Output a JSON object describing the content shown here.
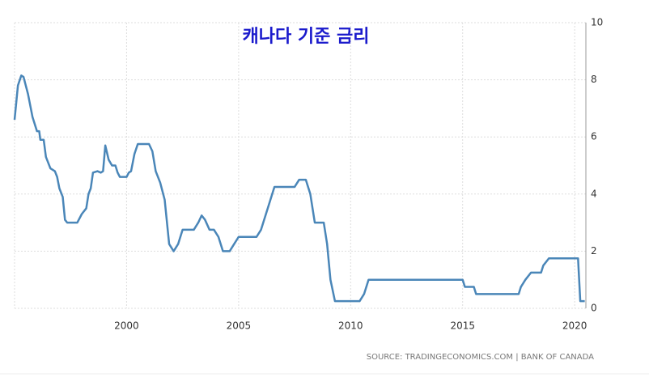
{
  "chart_data": {
    "type": "line",
    "title": "캐나다 기준 금리",
    "source": "SOURCE: TRADINGECONOMICS.COM | BANK OF CANADA",
    "color": "#4a86b8",
    "grid": true,
    "x": [
      1995.0,
      1995.15,
      1995.3,
      1995.4,
      1995.6,
      1995.8,
      1996.0,
      1996.1,
      1996.15,
      1996.3,
      1996.4,
      1996.6,
      1996.8,
      1996.9,
      1997.0,
      1997.15,
      1997.25,
      1997.35,
      1997.5,
      1997.8,
      1998.0,
      1998.2,
      1998.3,
      1998.4,
      1998.5,
      1998.7,
      1998.85,
      1998.95,
      1999.05,
      1999.2,
      1999.35,
      1999.5,
      1999.6,
      1999.7,
      2000.0,
      2000.1,
      2000.2,
      2000.35,
      2000.5,
      2001.0,
      2001.15,
      2001.3,
      2001.5,
      2001.7,
      2001.9,
      2002.1,
      2002.3,
      2002.5,
      2003.0,
      2003.2,
      2003.35,
      2003.5,
      2003.7,
      2003.9,
      2004.1,
      2004.3,
      2004.6,
      2004.8,
      2005.0,
      2005.8,
      2006.0,
      2006.2,
      2006.4,
      2006.5,
      2006.6,
      2007.5,
      2007.7,
      2008.0,
      2008.2,
      2008.4,
      2008.8,
      2008.95,
      2009.1,
      2009.3,
      2010.4,
      2010.6,
      2010.8,
      2015.0,
      2015.1,
      2015.5,
      2015.6,
      2017.5,
      2017.6,
      2017.8,
      2018.05,
      2018.5,
      2018.6,
      2018.85,
      2020.15,
      2020.25,
      2020.45
    ],
    "values": [
      6.6,
      7.8,
      8.15,
      8.1,
      7.5,
      6.7,
      6.2,
      6.2,
      5.9,
      5.9,
      5.3,
      4.9,
      4.8,
      4.6,
      4.2,
      3.9,
      3.1,
      3.0,
      3.0,
      3.0,
      3.3,
      3.5,
      4.0,
      4.2,
      4.75,
      4.8,
      4.75,
      4.8,
      5.7,
      5.2,
      5.0,
      5.0,
      4.75,
      4.6,
      4.6,
      4.75,
      4.8,
      5.4,
      5.75,
      5.75,
      5.5,
      4.8,
      4.4,
      3.8,
      2.25,
      2.0,
      2.25,
      2.75,
      2.75,
      3.0,
      3.25,
      3.1,
      2.75,
      2.75,
      2.5,
      2.0,
      2.0,
      2.25,
      2.5,
      2.5,
      2.75,
      3.25,
      3.75,
      4.0,
      4.25,
      4.25,
      4.5,
      4.5,
      4.0,
      3.0,
      3.0,
      2.25,
      1.0,
      0.25,
      0.25,
      0.5,
      1.0,
      1.0,
      0.75,
      0.75,
      0.5,
      0.5,
      0.75,
      1.0,
      1.25,
      1.25,
      1.5,
      1.75,
      1.75,
      0.25,
      0.25
    ],
    "xlim": [
      1995,
      2020.5
    ],
    "xticks": [
      2000,
      2005,
      2010,
      2015,
      2020
    ],
    "ylim": [
      0,
      10
    ],
    "yticks": [
      0,
      2,
      4,
      6,
      8,
      10
    ]
  }
}
